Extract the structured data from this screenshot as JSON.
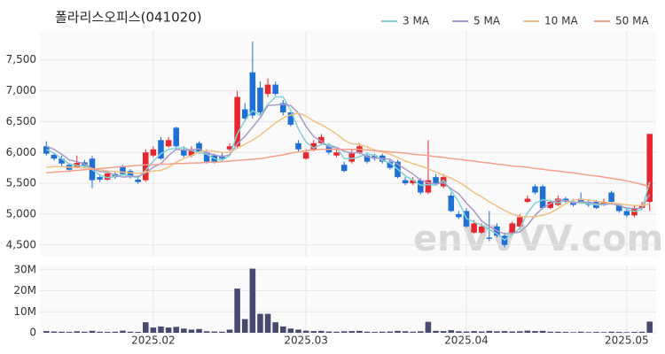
{
  "chart_data": {
    "type": "candlestick",
    "title": "폴라리스오피스(041020)",
    "watermark": "enVVVV.com",
    "categories": [
      null,
      null,
      null,
      null,
      null,
      null,
      null,
      null,
      null,
      null,
      null,
      null,
      null,
      null,
      "2025.02",
      null,
      null,
      null,
      null,
      null,
      null,
      null,
      null,
      null,
      null,
      null,
      null,
      null,
      null,
      null,
      null,
      null,
      null,
      null,
      "2025.03",
      null,
      null,
      null,
      null,
      null,
      null,
      null,
      null,
      null,
      null,
      null,
      null,
      null,
      null,
      null,
      null,
      null,
      null,
      null,
      null,
      "2025.04",
      null,
      null,
      null,
      null,
      null,
      null,
      null,
      null,
      null,
      null,
      null,
      null,
      null,
      null,
      null,
      null,
      null,
      null,
      null,
      null,
      "2025.05",
      null,
      null,
      null
    ],
    "open": [
      6100,
      5960,
      5900,
      5800,
      5760,
      5840,
      5900,
      5600,
      5560,
      5650,
      5780,
      5700,
      5560,
      5550,
      5950,
      6200,
      6100,
      6400,
      6050,
      5950,
      6150,
      6000,
      5950,
      5950,
      6050,
      6100,
      6700,
      7300,
      7050,
      6950,
      7100,
      6800,
      6650,
      6150,
      5900,
      6050,
      6150,
      6100,
      5950,
      5800,
      5850,
      6000,
      5950,
      5950,
      5950,
      5850,
      5850,
      5550,
      5500,
      5550,
      5350,
      5600,
      5450,
      5300,
      5000,
      5050,
      4700,
      4700,
      4620,
      4800,
      4650,
      4700,
      4800,
      5200,
      5450,
      5450,
      5100,
      5150,
      5250,
      5200,
      5250,
      5200,
      5200,
      5150,
      5350,
      5150,
      5050,
      4980,
      5100,
      5200
    ],
    "high": [
      6180,
      6000,
      5950,
      5830,
      5950,
      5880,
      5950,
      5650,
      5700,
      5700,
      5800,
      5730,
      5600,
      6050,
      6100,
      6250,
      6250,
      6420,
      6100,
      6100,
      6180,
      6050,
      5980,
      6000,
      6150,
      7000,
      6800,
      7800,
      7150,
      7200,
      7150,
      6850,
      6700,
      6200,
      6050,
      6200,
      6300,
      6150,
      6050,
      5850,
      6050,
      6150,
      6000,
      5980,
      5980,
      5900,
      5880,
      5600,
      5600,
      5580,
      6200,
      5650,
      5650,
      5350,
      5050,
      5100,
      4900,
      4850,
      5050,
      4850,
      4700,
      4880,
      5000,
      5300,
      5480,
      5480,
      5230,
      5300,
      5280,
      5250,
      5350,
      5230,
      5230,
      5250,
      5380,
      5180,
      5080,
      5130,
      5200,
      6300
    ],
    "low": [
      5950,
      5870,
      5780,
      5700,
      5740,
      5750,
      5420,
      5520,
      5540,
      5570,
      5620,
      5580,
      5490,
      5520,
      5920,
      5880,
      6080,
      6080,
      5920,
      5920,
      5980,
      5820,
      5820,
      5880,
      6020,
      6080,
      6500,
      6550,
      6600,
      6900,
      6920,
      6600,
      6420,
      6000,
      5880,
      6020,
      6120,
      5970,
      5920,
      5680,
      5820,
      5970,
      5820,
      5870,
      5820,
      5720,
      5580,
      5470,
      5470,
      5320,
      5320,
      5470,
      5420,
      5030,
      4920,
      4780,
      4680,
      4680,
      4560,
      4620,
      4460,
      4680,
      4780,
      5180,
      5320,
      5080,
      5080,
      5130,
      5180,
      5120,
      5180,
      5120,
      5080,
      5130,
      5180,
      5020,
      4950,
      4950,
      5080,
      5050
    ],
    "close": [
      5980,
      5900,
      5820,
      5720,
      5830,
      5780,
      5550,
      5560,
      5660,
      5600,
      5650,
      5600,
      5520,
      6000,
      6050,
      5900,
      6200,
      6100,
      5950,
      6050,
      6000,
      5850,
      5850,
      5900,
      6100,
      6900,
      6550,
      6600,
      6650,
      7100,
      6950,
      6650,
      6450,
      6050,
      6000,
      6150,
      6250,
      6000,
      6000,
      5700,
      6000,
      6100,
      5850,
      5900,
      5850,
      5750,
      5600,
      5500,
      5550,
      5350,
      5550,
      5500,
      5600,
      5050,
      4950,
      4800,
      4850,
      4800,
      4600,
      4650,
      4500,
      4850,
      4950,
      5250,
      5350,
      5100,
      5200,
      5250,
      5200,
      5150,
      5200,
      5150,
      5100,
      5200,
      5200,
      5050,
      4980,
      5100,
      5150,
      6300
    ],
    "up_color": "#e8262e",
    "down_color": "#1f6fd6",
    "ylim": [
      4310,
      7970
    ],
    "yticks": [
      {
        "value": 4500,
        "label": "4,500"
      },
      {
        "value": 5000,
        "label": "5,000"
      },
      {
        "value": 5500,
        "label": "5,500"
      },
      {
        "value": 6000,
        "label": "6,000"
      },
      {
        "value": 6500,
        "label": "6,500"
      },
      {
        "value": 7000,
        "label": "7,000"
      },
      {
        "value": 7500,
        "label": "7,500"
      }
    ],
    "grid": true,
    "legend": "top-right",
    "series": [
      {
        "name": "3 MA",
        "color": "#7fd3d3",
        "values": [
          6050,
          5990,
          5900,
          5810,
          5790,
          5780,
          5720,
          5630,
          5590,
          5610,
          5640,
          5620,
          5590,
          5710,
          5860,
          5980,
          6050,
          6070,
          6080,
          6030,
          6000,
          5970,
          5900,
          5870,
          5950,
          6300,
          6520,
          6680,
          6600,
          6780,
          6900,
          6900,
          6680,
          6380,
          6170,
          6070,
          6130,
          6130,
          6080,
          5900,
          5900,
          5930,
          5980,
          5950,
          5870,
          5830,
          5730,
          5620,
          5550,
          5470,
          5480,
          5470,
          5550,
          5380,
          5200,
          4930,
          4870,
          4820,
          4750,
          4680,
          4580,
          4670,
          4770,
          5020,
          5180,
          5230,
          5220,
          5180,
          5220,
          5200,
          5180,
          5170,
          5150,
          5150,
          5170,
          5150,
          5080,
          5040,
          5080,
          5520
        ]
      },
      {
        "name": "5 MA",
        "color": "#a99bc9",
        "values": [
          6100,
          6050,
          5970,
          5880,
          5850,
          5810,
          5740,
          5690,
          5680,
          5630,
          5600,
          5610,
          5610,
          5670,
          5760,
          5820,
          5950,
          6050,
          6040,
          6040,
          6060,
          5990,
          5960,
          5930,
          5960,
          6140,
          6260,
          6410,
          6560,
          6760,
          6770,
          6780,
          6760,
          6640,
          6420,
          6260,
          6180,
          6090,
          6080,
          6020,
          5990,
          6000,
          5930,
          5910,
          5900,
          5890,
          5810,
          5730,
          5650,
          5550,
          5510,
          5490,
          5510,
          5410,
          5330,
          5180,
          5050,
          4890,
          4800,
          4730,
          4680,
          4690,
          4710,
          4820,
          4980,
          5100,
          5170,
          5230,
          5220,
          5180,
          5200,
          5190,
          5170,
          5160,
          5170,
          5140,
          5100,
          5090,
          5100,
          5320
        ]
      },
      {
        "name": "10 MA",
        "color": "#f2c185",
        "values": [
          5760,
          5770,
          5770,
          5760,
          5760,
          5750,
          5740,
          5720,
          5700,
          5690,
          5680,
          5670,
          5660,
          5680,
          5700,
          5710,
          5760,
          5840,
          5900,
          5950,
          6010,
          6030,
          6020,
          6000,
          6000,
          6070,
          6130,
          6200,
          6280,
          6380,
          6480,
          6560,
          6610,
          6640,
          6590,
          6510,
          6450,
          6380,
          6300,
          6200,
          6140,
          6130,
          6090,
          6040,
          6010,
          5970,
          5920,
          5860,
          5820,
          5780,
          5740,
          5680,
          5630,
          5580,
          5520,
          5440,
          5350,
          5280,
          5200,
          5130,
          5060,
          5000,
          4960,
          4960,
          4960,
          4980,
          5020,
          5090,
          5170,
          5230,
          5240,
          5230,
          5210,
          5190,
          5180,
          5170,
          5150,
          5140,
          5140,
          5170
        ]
      },
      {
        "name": "50 MA",
        "color": "#f4a08a",
        "values": [
          5670,
          5680,
          5690,
          5700,
          5710,
          5720,
          5730,
          5740,
          5750,
          5760,
          5770,
          5780,
          5790,
          5800,
          5800,
          5810,
          5810,
          5820,
          5820,
          5830,
          5830,
          5840,
          5840,
          5850,
          5860,
          5870,
          5880,
          5890,
          5900,
          5920,
          5940,
          5960,
          5990,
          6010,
          6030,
          6040,
          6050,
          6050,
          6050,
          6050,
          6050,
          6050,
          6040,
          6030,
          6020,
          6010,
          6000,
          5990,
          5970,
          5960,
          5950,
          5930,
          5920,
          5900,
          5890,
          5870,
          5860,
          5840,
          5830,
          5810,
          5800,
          5780,
          5770,
          5760,
          5740,
          5730,
          5710,
          5700,
          5680,
          5670,
          5650,
          5630,
          5620,
          5600,
          5580,
          5560,
          5540,
          5510,
          5480,
          5450
        ]
      }
    ],
    "volume": {
      "color": "#474a6e",
      "values": [
        800000,
        600000,
        500000,
        400000,
        700000,
        500000,
        900000,
        500000,
        400000,
        500000,
        1000000,
        500000,
        400000,
        5000000,
        2500000,
        3000000,
        2500000,
        2800000,
        2000000,
        1500000,
        1800000,
        700000,
        600000,
        500000,
        1500000,
        21000000,
        6500000,
        30500000,
        9000000,
        9000000,
        5000000,
        3000000,
        2000000,
        1500000,
        1000000,
        800000,
        900000,
        600000,
        500000,
        700000,
        800000,
        900000,
        500000,
        400000,
        500000,
        600000,
        900000,
        700000,
        500000,
        700000,
        5200000,
        900000,
        800000,
        1200000,
        700000,
        600000,
        800000,
        600000,
        900000,
        700000,
        800000,
        600000,
        700000,
        1000000,
        800000,
        900000,
        500000,
        500000,
        400000,
        300000,
        500000,
        300000,
        400000,
        300000,
        500000,
        400000,
        300000,
        400000,
        500000,
        5300000
      ],
      "ylim": [
        0,
        32000000
      ],
      "yticks": [
        0,
        {
          "value": 10000000,
          "label": "10M"
        },
        {
          "value": 20000000,
          "label": "20M"
        },
        {
          "value": 30000000,
          "label": "30M"
        }
      ]
    }
  }
}
